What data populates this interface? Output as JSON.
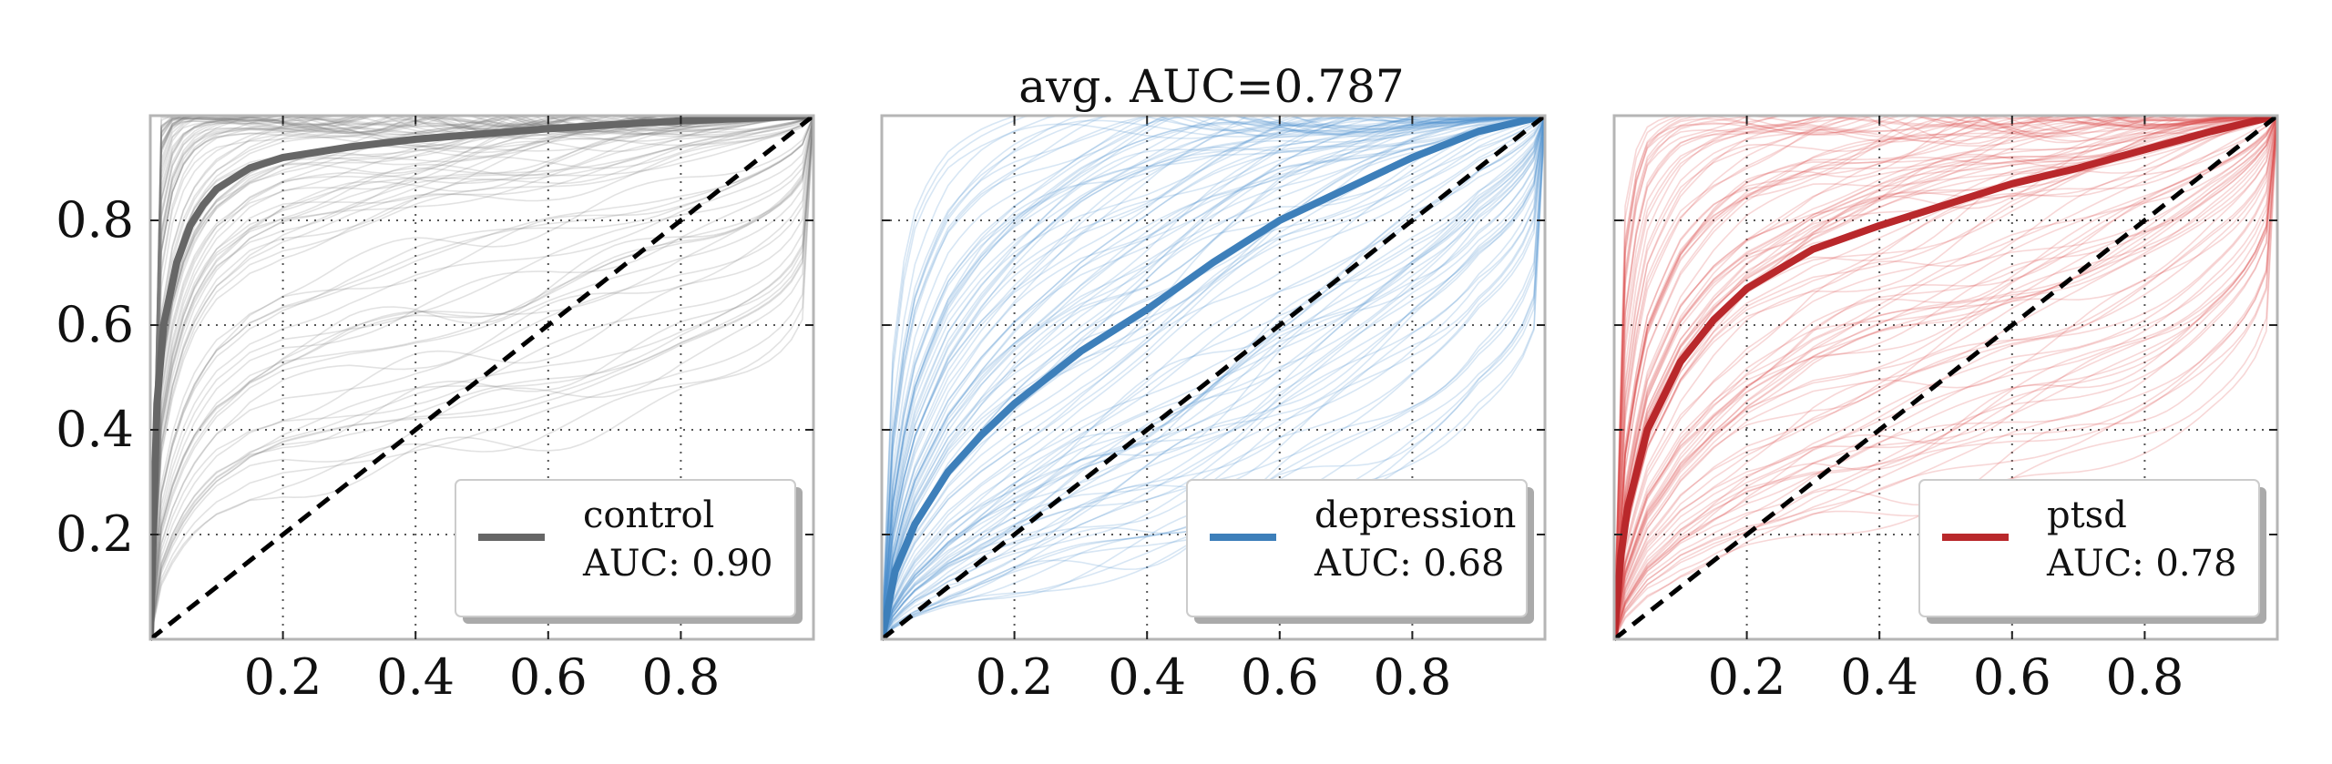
{
  "figure": {
    "title": "avg. AUC=0.787"
  },
  "chart_data": [
    {
      "type": "line",
      "title": "",
      "xlabel": "",
      "ylabel": "",
      "xlim": [
        0,
        1
      ],
      "ylim": [
        0,
        1
      ],
      "x_ticks": [
        "0.2",
        "0.4",
        "0.6",
        "0.8"
      ],
      "y_ticks": [
        "0.2",
        "0.4",
        "0.6",
        "0.8"
      ],
      "grid": true,
      "legend_position": "lower right",
      "legend": {
        "label": "control",
        "auc_text": "AUC: 0.90"
      },
      "color": "#666666",
      "thin_color": "#7a7a7a",
      "series": [
        {
          "name": "control",
          "x": [
            0,
            0.01,
            0.02,
            0.04,
            0.06,
            0.08,
            0.1,
            0.15,
            0.2,
            0.3,
            0.4,
            0.5,
            0.6,
            0.7,
            0.8,
            0.9,
            1.0
          ],
          "y": [
            0,
            0.45,
            0.6,
            0.72,
            0.79,
            0.83,
            0.86,
            0.9,
            0.92,
            0.94,
            0.955,
            0.965,
            0.975,
            0.983,
            0.99,
            0.995,
            1.0
          ]
        },
        {
          "name": "chance",
          "x": [
            0,
            1
          ],
          "y": [
            0,
            1
          ]
        }
      ]
    },
    {
      "type": "line",
      "title": "",
      "xlabel": "",
      "ylabel": "",
      "xlim": [
        0,
        1
      ],
      "ylim": [
        0,
        1
      ],
      "x_ticks": [
        "0.2",
        "0.4",
        "0.6",
        "0.8"
      ],
      "y_ticks": [],
      "grid": true,
      "legend_position": "lower right",
      "legend": {
        "label": "depression",
        "auc_text": "AUC: 0.68"
      },
      "color": "#3d7fba",
      "thin_color": "#4a8fcc",
      "series": [
        {
          "name": "depression",
          "x": [
            0,
            0.02,
            0.05,
            0.1,
            0.15,
            0.2,
            0.3,
            0.4,
            0.5,
            0.6,
            0.7,
            0.8,
            0.9,
            1.0
          ],
          "y": [
            0,
            0.13,
            0.22,
            0.32,
            0.39,
            0.45,
            0.55,
            0.63,
            0.72,
            0.8,
            0.86,
            0.92,
            0.97,
            1.0
          ]
        },
        {
          "name": "chance",
          "x": [
            0,
            1
          ],
          "y": [
            0,
            1
          ]
        }
      ]
    },
    {
      "type": "line",
      "title": "",
      "xlabel": "",
      "ylabel": "",
      "xlim": [
        0,
        1
      ],
      "ylim": [
        0,
        1
      ],
      "x_ticks": [
        "0.2",
        "0.4",
        "0.6",
        "0.8"
      ],
      "y_ticks": [],
      "grid": true,
      "legend_position": "lower right",
      "legend": {
        "label": "ptsd",
        "auc_text": "AUC: 0.78"
      },
      "color": "#b9282b",
      "thin_color": "#d9474a",
      "series": [
        {
          "name": "ptsd",
          "x": [
            0,
            0.01,
            0.02,
            0.05,
            0.1,
            0.15,
            0.2,
            0.3,
            0.4,
            0.5,
            0.6,
            0.7,
            0.8,
            0.9,
            1.0
          ],
          "y": [
            0,
            0.16,
            0.25,
            0.4,
            0.53,
            0.61,
            0.67,
            0.745,
            0.79,
            0.83,
            0.87,
            0.9,
            0.935,
            0.97,
            1.0
          ]
        },
        {
          "name": "chance",
          "x": [
            0,
            1
          ],
          "y": [
            0,
            1
          ]
        }
      ]
    }
  ]
}
